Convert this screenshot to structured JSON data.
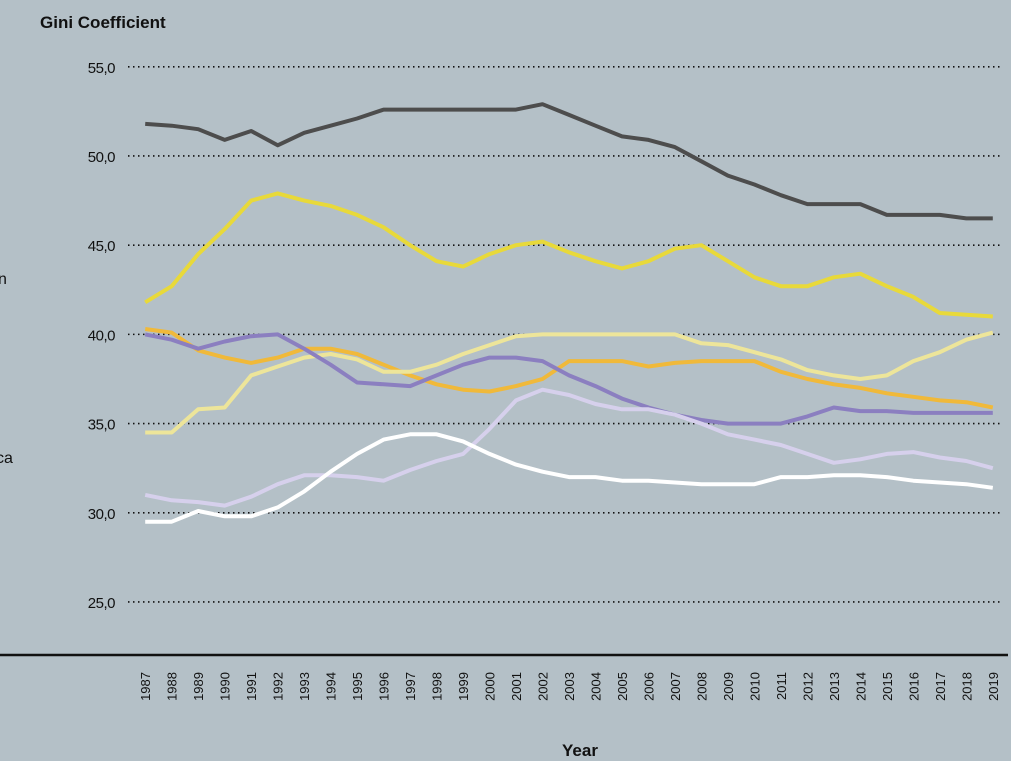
{
  "chart_data": {
    "type": "line",
    "title": "Gini Coefficient",
    "xlabel": "Year",
    "annotations": [
      "n",
      "ca"
    ],
    "categories": [
      "1987",
      "1988",
      "1989",
      "1990",
      "1991",
      "1992",
      "1993",
      "1994",
      "1995",
      "1996",
      "1997",
      "1998",
      "1999",
      "2000",
      "2001",
      "2002",
      "2003",
      "2004",
      "2005",
      "2006",
      "2007",
      "2008",
      "2009",
      "2010",
      "2011",
      "2012",
      "2013",
      "2014",
      "2015",
      "2016",
      "2017",
      "2018",
      "2019"
    ],
    "series": [
      {
        "color": "#4d4d4d",
        "values": [
          51.8,
          51.7,
          51.5,
          50.9,
          51.4,
          50.6,
          51.3,
          51.7,
          52.1,
          52.6,
          52.6,
          52.6,
          52.6,
          52.6,
          52.6,
          52.9,
          52.3,
          51.7,
          51.1,
          50.9,
          50.5,
          49.7,
          48.9,
          48.4,
          47.8,
          47.3,
          47.3,
          47.3,
          46.7,
          46.7,
          46.7,
          46.5,
          46.5
        ]
      },
      {
        "color": "#e8d93a",
        "values": [
          41.8,
          42.7,
          44.5,
          45.9,
          47.5,
          47.9,
          47.5,
          47.2,
          46.7,
          46.0,
          45.0,
          44.1,
          43.8,
          44.5,
          45.0,
          45.2,
          44.6,
          44.1,
          43.7,
          44.1,
          44.8,
          45.0,
          44.1,
          43.2,
          42.7,
          42.7,
          43.2,
          43.4,
          42.7,
          42.1,
          41.2,
          41.1,
          41.0
        ]
      },
      {
        "color": "#f0b93a",
        "values": [
          40.3,
          40.1,
          39.1,
          38.7,
          38.4,
          38.7,
          39.2,
          39.2,
          38.9,
          38.3,
          37.7,
          37.2,
          36.9,
          36.8,
          37.1,
          37.5,
          38.5,
          38.5,
          38.5,
          38.2,
          38.4,
          38.5,
          38.5,
          38.5,
          37.9,
          37.5,
          37.2,
          37.0,
          36.7,
          36.5,
          36.3,
          36.2,
          35.9
        ]
      },
      {
        "color": "#ede59a",
        "values": [
          34.5,
          34.5,
          35.8,
          35.9,
          37.7,
          38.2,
          38.7,
          38.9,
          38.6,
          37.9,
          37.9,
          38.3,
          38.9,
          39.4,
          39.9,
          40.0,
          40.0,
          40.0,
          40.0,
          40.0,
          40.0,
          39.5,
          39.4,
          39.0,
          38.6,
          38.0,
          37.7,
          37.5,
          37.7,
          38.5,
          39.0,
          39.7,
          40.1
        ]
      },
      {
        "color": "#8b7fc0",
        "values": [
          40.0,
          39.7,
          39.2,
          39.6,
          39.9,
          40.0,
          39.2,
          38.3,
          37.3,
          37.2,
          37.1,
          37.7,
          38.3,
          38.7,
          38.7,
          38.5,
          37.7,
          37.1,
          36.4,
          35.9,
          35.5,
          35.2,
          35.0,
          35.0,
          35.0,
          35.4,
          35.9,
          35.7,
          35.7,
          35.6,
          35.6,
          35.6,
          35.6
        ]
      },
      {
        "color": "#d6d0ec",
        "values": [
          31.0,
          30.7,
          30.6,
          30.4,
          30.9,
          31.6,
          32.1,
          32.1,
          32.0,
          31.8,
          32.4,
          32.9,
          33.3,
          34.7,
          36.3,
          36.9,
          36.6,
          36.1,
          35.8,
          35.8,
          35.5,
          35.0,
          34.4,
          34.1,
          33.8,
          33.3,
          32.8,
          33.0,
          33.3,
          33.4,
          33.1,
          32.9,
          32.5
        ]
      },
      {
        "color": "#ffffff",
        "values": [
          29.5,
          29.5,
          30.1,
          29.8,
          29.8,
          30.3,
          31.2,
          32.3,
          33.3,
          34.1,
          34.4,
          34.4,
          34.0,
          33.3,
          32.7,
          32.3,
          32.0,
          32.0,
          31.8,
          31.8,
          31.7,
          31.6,
          31.6,
          31.6,
          32.0,
          32.0,
          32.1,
          32.1,
          32.0,
          31.8,
          31.7,
          31.6,
          31.4
        ]
      }
    ],
    "ylim": [
      22,
      57
    ],
    "yticks": [
      {
        "value": 25,
        "label": "25,0"
      },
      {
        "value": 30,
        "label": "30,0"
      },
      {
        "value": 35,
        "label": "35,0"
      },
      {
        "value": 40,
        "label": "40,0"
      },
      {
        "value": 45,
        "label": "45,0"
      },
      {
        "value": 50,
        "label": "50,0"
      },
      {
        "value": 55,
        "label": "55,0"
      }
    ],
    "grid": true
  }
}
